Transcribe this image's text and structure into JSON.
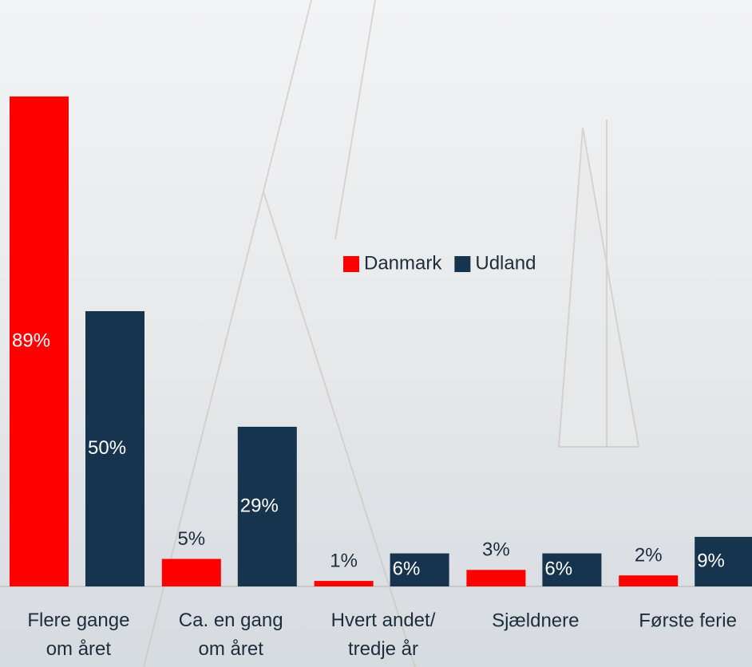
{
  "chart_data": {
    "type": "bar",
    "categories": [
      "Flere gange\nom året",
      "Ca. en gang\nom året",
      "Hvert andet/\ntredje år",
      "Sjældnere",
      "Første ferie"
    ],
    "series": [
      {
        "name": "Danmark",
        "color": "#ff0000",
        "values": [
          89,
          5,
          1,
          3,
          2
        ],
        "value_labels": [
          "89%",
          "5%",
          "1%",
          "3%",
          "2%"
        ]
      },
      {
        "name": "Udland",
        "color": "#16344e",
        "values": [
          50,
          29,
          6,
          6,
          9
        ],
        "value_labels": [
          "50%",
          "29%",
          "6%",
          "6%",
          "9%"
        ]
      }
    ],
    "ylim": [
      0,
      100
    ],
    "legend": "center"
  }
}
